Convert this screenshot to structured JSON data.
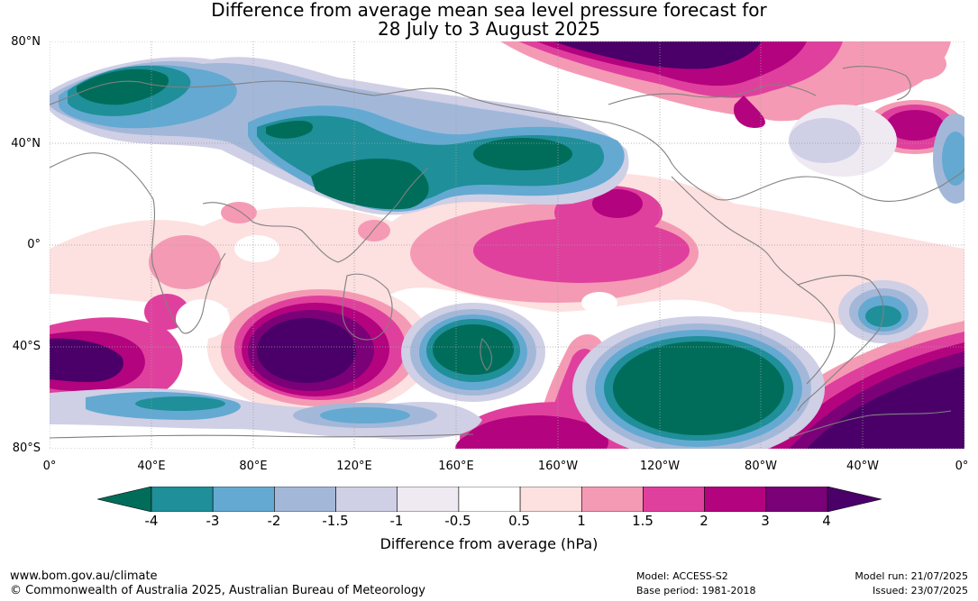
{
  "title": {
    "line1": "Difference from average mean sea level pressure forecast for",
    "line2": "28 July to 3 August 2025"
  },
  "map": {
    "projection": "equirectangular",
    "lat_range": [
      "80°S",
      "80°N"
    ],
    "lat_labels": [
      "80°N",
      "40°N",
      "0°",
      "40°S",
      "80°S"
    ],
    "lon_labels": [
      "0°",
      "40°E",
      "80°E",
      "120°E",
      "160°E",
      "160°W",
      "120°W",
      "80°W",
      "40°W",
      "0°"
    ],
    "grid": "dotted gray",
    "coastline_color": "#808080"
  },
  "legend": {
    "title": "Difference from average (hPa)",
    "tick_labels": [
      "-4",
      "-3",
      "-2",
      "-1.5",
      "-1",
      "-0.5",
      "0.5",
      "1",
      "1.5",
      "2",
      "3",
      "4"
    ],
    "colors": [
      "#006d5b",
      "#1f8f99",
      "#64a9d1",
      "#a3b8d9",
      "#cfcfe6",
      "#efe9f2",
      "#ffffff",
      "#fde0e0",
      "#f59ab4",
      "#e0409d",
      "#b3037f",
      "#7a0177",
      "#4a0068"
    ]
  },
  "footer": {
    "website": "www.bom.gov.au/climate",
    "copyright": "© Commonwealth of Australia 2025, Australian Bureau of Meteorology",
    "model": "Model: ACCESS-S2",
    "base_period": "Base period: 1981-2018",
    "model_run": "Model run: 21/07/2025",
    "issued": "Issued: 23/07/2025"
  }
}
